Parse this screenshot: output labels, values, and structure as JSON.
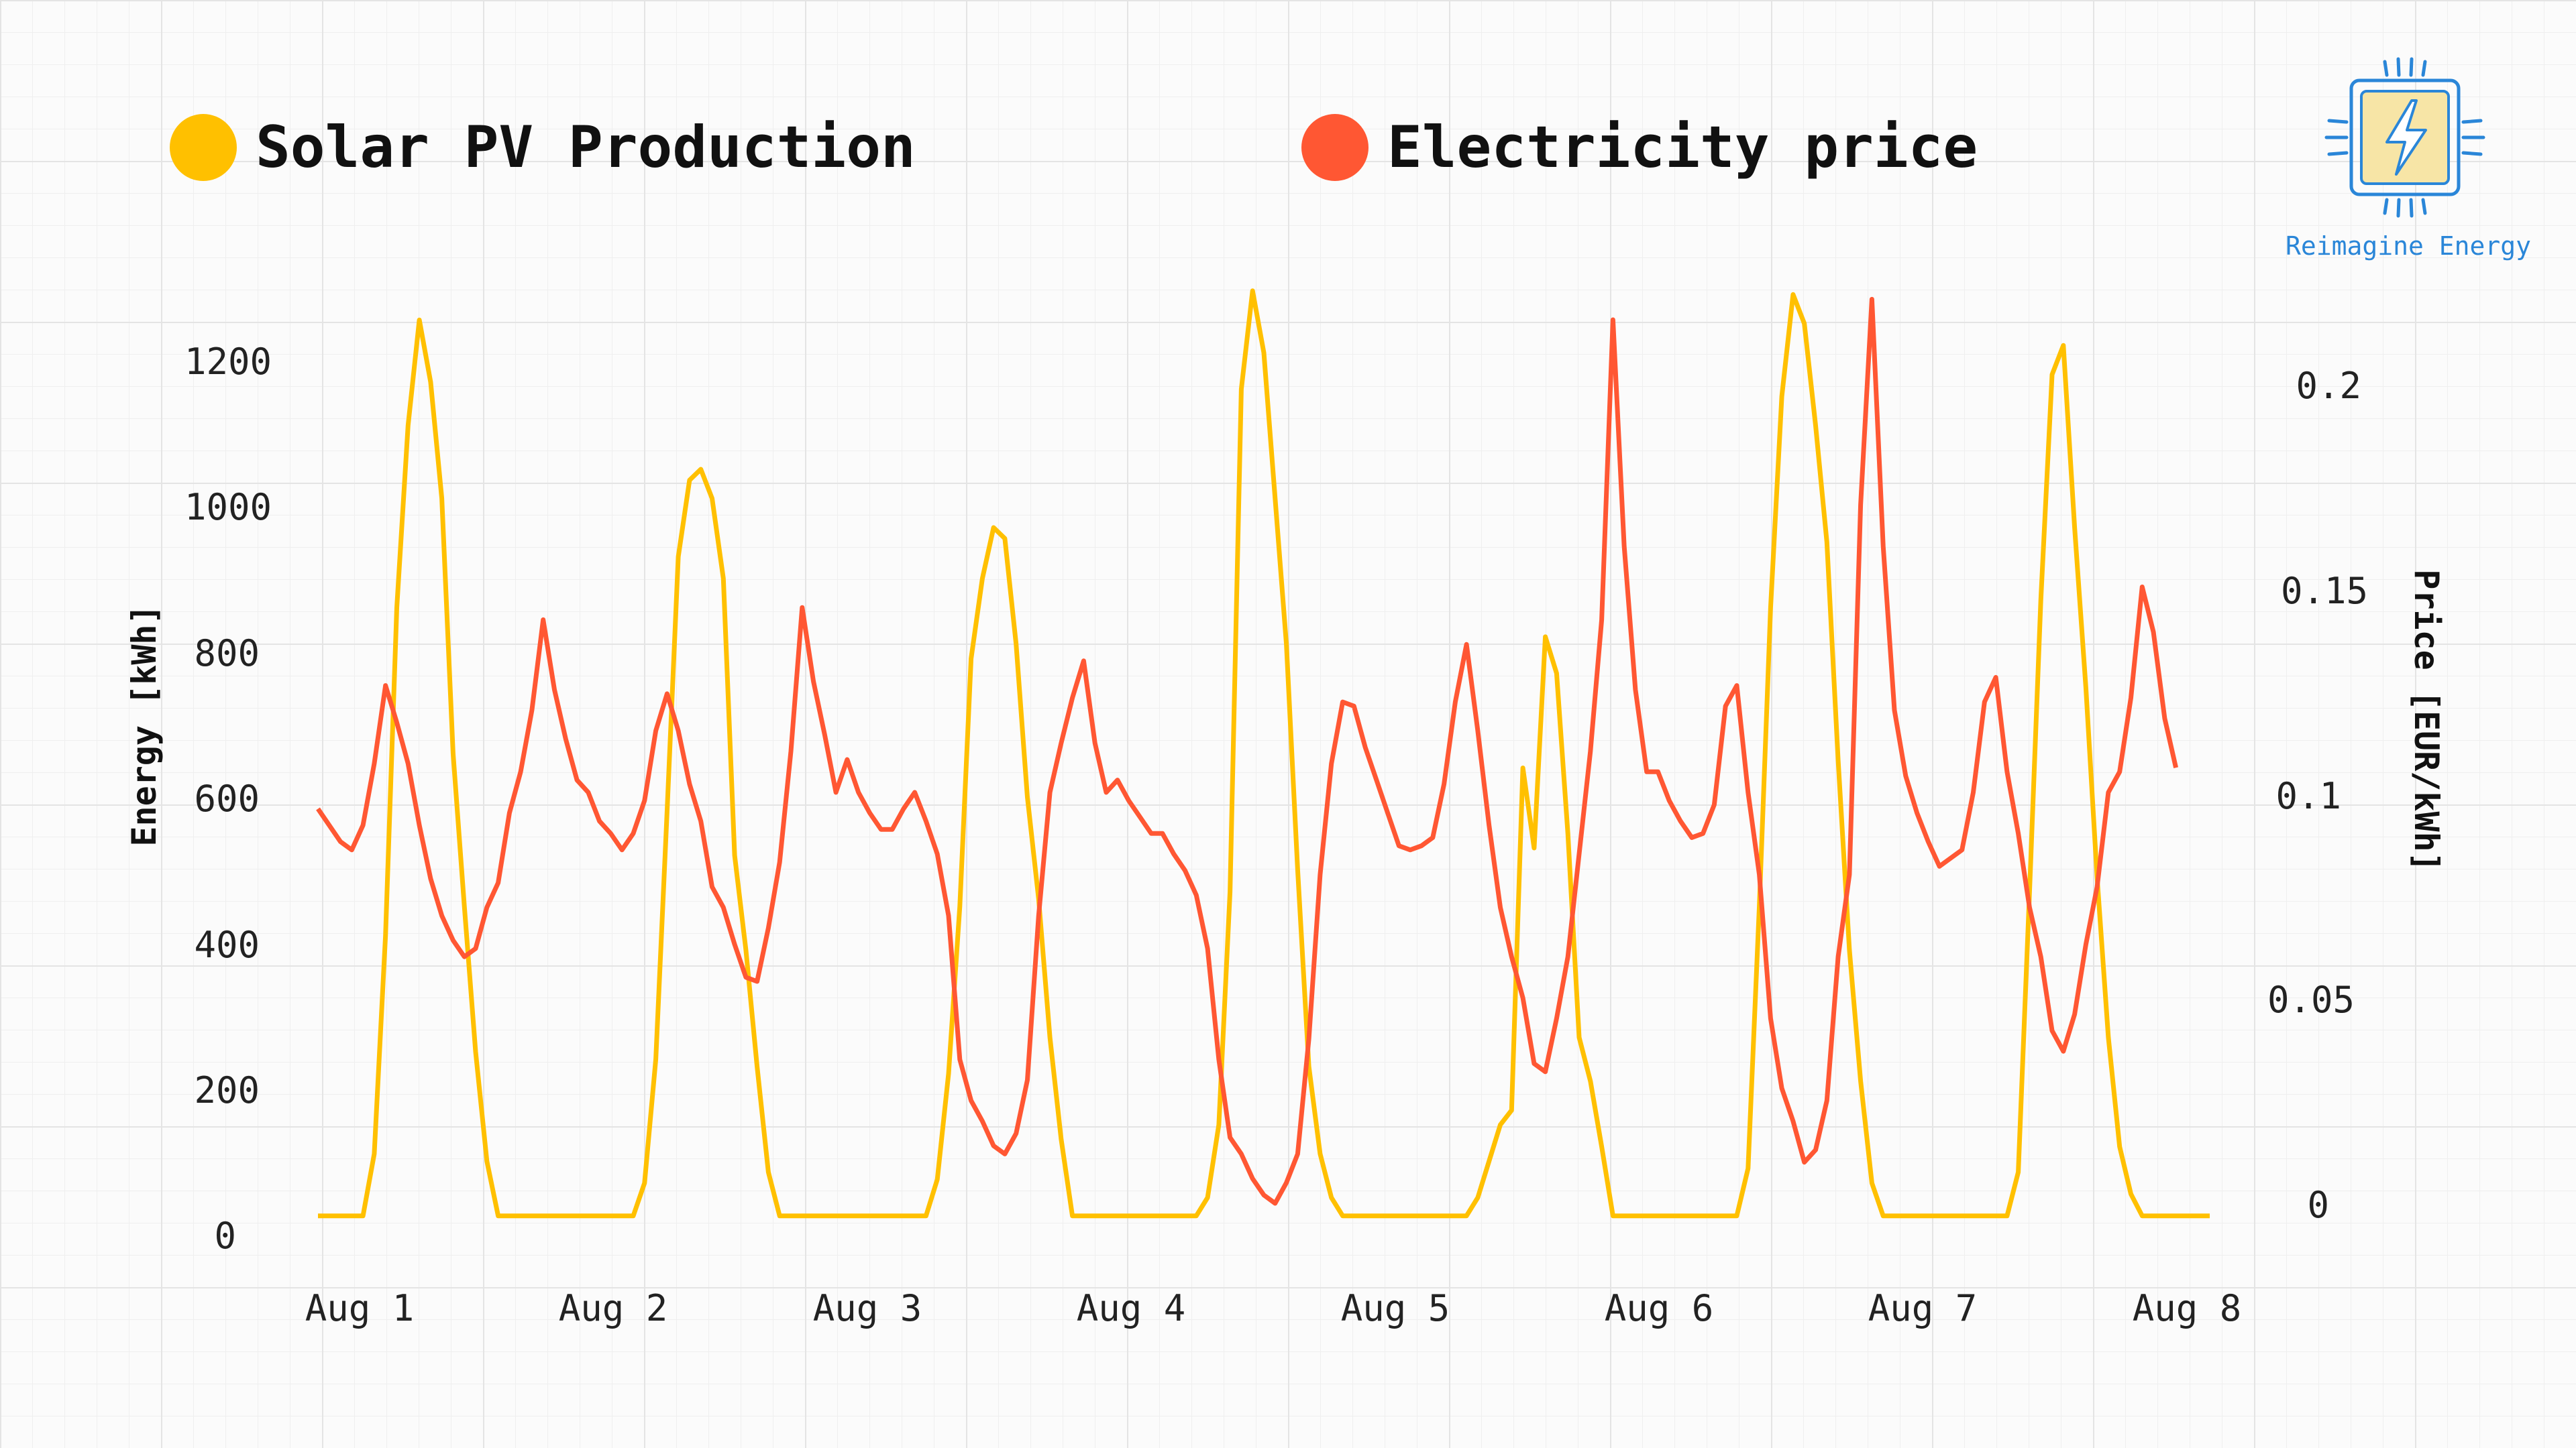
{
  "legend": {
    "solar_label": "Solar PV Production",
    "price_label": "Electricity price",
    "solar_color": "#FFC000",
    "price_color": "#FF5733"
  },
  "brand": {
    "text": "Reimagine Energy",
    "color": "#2A86D8",
    "icon": "bolt-chip-icon"
  },
  "chart_data": {
    "type": "line",
    "x_ticks": [
      "Aug 1",
      "Aug 2",
      "Aug 3",
      "Aug 4",
      "Aug 5",
      "Aug 6",
      "Aug 7",
      "Aug 8"
    ],
    "xlim": [
      "Aug 1 00:00",
      "Aug 8 00:00"
    ],
    "left_axis": {
      "label": "Energy [kWh]",
      "ticks": [
        "0",
        "200",
        "400",
        "600",
        "800",
        "1000",
        "1200"
      ],
      "ylim": [
        0,
        1300
      ]
    },
    "right_axis": {
      "label": "Price [EUR/kWh]",
      "ticks": [
        "0",
        "0.05",
        "0.1",
        "0.15",
        "0.2"
      ],
      "ylim": [
        0,
        0.22
      ]
    },
    "grid": true,
    "legend_position": "top",
    "series": [
      {
        "name": "Solar PV Production",
        "axis": "left",
        "color": "#FFC000",
        "points": [
          [
            "Aug 1 00:00",
            15
          ],
          [
            "Aug 1 04:00",
            15
          ],
          [
            "Aug 1 05:00",
            100
          ],
          [
            "Aug 1 06:00",
            400
          ],
          [
            "Aug 1 07:00",
            850
          ],
          [
            "Aug 1 08:00",
            1100
          ],
          [
            "Aug 1 09:00",
            1245
          ],
          [
            "Aug 1 10:00",
            1160
          ],
          [
            "Aug 1 11:00",
            1000
          ],
          [
            "Aug 1 12:00",
            650
          ],
          [
            "Aug 1 13:00",
            440
          ],
          [
            "Aug 1 14:00",
            240
          ],
          [
            "Aug 1 15:00",
            90
          ],
          [
            "Aug 1 16:00",
            15
          ],
          [
            "Aug 2 04:00",
            15
          ],
          [
            "Aug 2 05:00",
            60
          ],
          [
            "Aug 2 06:00",
            230
          ],
          [
            "Aug 2 07:00",
            570
          ],
          [
            "Aug 2 08:00",
            920
          ],
          [
            "Aug 2 09:00",
            1025
          ],
          [
            "Aug 2 10:00",
            1040
          ],
          [
            "Aug 2 11:00",
            1000
          ],
          [
            "Aug 2 12:00",
            890
          ],
          [
            "Aug 2 13:00",
            510
          ],
          [
            "Aug 2 14:00",
            380
          ],
          [
            "Aug 2 15:00",
            220
          ],
          [
            "Aug 2 16:00",
            75
          ],
          [
            "Aug 2 17:00",
            15
          ],
          [
            "Aug 3 06:00",
            15
          ],
          [
            "Aug 3 07:00",
            65
          ],
          [
            "Aug 3 08:00",
            210
          ],
          [
            "Aug 3 09:00",
            440
          ],
          [
            "Aug 3 10:00",
            780
          ],
          [
            "Aug 3 11:00",
            890
          ],
          [
            "Aug 3 12:00",
            960
          ],
          [
            "Aug 3 13:00",
            945
          ],
          [
            "Aug 3 14:00",
            800
          ],
          [
            "Aug 3 15:00",
            590
          ],
          [
            "Aug 3 16:00",
            450
          ],
          [
            "Aug 3 17:00",
            260
          ],
          [
            "Aug 3 18:00",
            120
          ],
          [
            "Aug 3 19:00",
            15
          ],
          [
            "Aug 4 06:00",
            15
          ],
          [
            "Aug 4 07:00",
            40
          ],
          [
            "Aug 4 08:00",
            140
          ],
          [
            "Aug 4 09:00",
            460
          ],
          [
            "Aug 4 10:00",
            1150
          ],
          [
            "Aug 4 11:00",
            1285
          ],
          [
            "Aug 4 12:00",
            1200
          ],
          [
            "Aug 4 13:00",
            1000
          ],
          [
            "Aug 4 14:00",
            800
          ],
          [
            "Aug 4 15:00",
            490
          ],
          [
            "Aug 4 16:00",
            220
          ],
          [
            "Aug 4 17:00",
            100
          ],
          [
            "Aug 4 18:00",
            40
          ],
          [
            "Aug 4 19:00",
            15
          ],
          [
            "Aug 5 06:00",
            15
          ],
          [
            "Aug 5 07:00",
            40
          ],
          [
            "Aug 5 08:00",
            90
          ],
          [
            "Aug 5 09:00",
            140
          ],
          [
            "Aug 5 10:00",
            160
          ],
          [
            "Aug 5 11:00",
            630
          ],
          [
            "Aug 5 12:00",
            520
          ],
          [
            "Aug 5 13:00",
            810
          ],
          [
            "Aug 5 14:00",
            760
          ],
          [
            "Aug 5 15:00",
            540
          ],
          [
            "Aug 5 16:00",
            260
          ],
          [
            "Aug 5 17:00",
            200
          ],
          [
            "Aug 5 18:00",
            110
          ],
          [
            "Aug 5 19:00",
            15
          ],
          [
            "Aug 6 06:00",
            15
          ],
          [
            "Aug 6 07:00",
            80
          ],
          [
            "Aug 6 08:00",
            440
          ],
          [
            "Aug 6 09:00",
            850
          ],
          [
            "Aug 6 10:00",
            1140
          ],
          [
            "Aug 6 11:00",
            1280
          ],
          [
            "Aug 6 12:00",
            1240
          ],
          [
            "Aug 6 13:00",
            1100
          ],
          [
            "Aug 6 14:00",
            940
          ],
          [
            "Aug 6 15:00",
            640
          ],
          [
            "Aug 6 16:00",
            380
          ],
          [
            "Aug 6 17:00",
            200
          ],
          [
            "Aug 6 18:00",
            60
          ],
          [
            "Aug 6 19:00",
            15
          ],
          [
            "Aug 7 06:00",
            15
          ],
          [
            "Aug 7 07:00",
            75
          ],
          [
            "Aug 7 08:00",
            460
          ],
          [
            "Aug 7 09:00",
            860
          ],
          [
            "Aug 7 10:00",
            1170
          ],
          [
            "Aug 7 11:00",
            1210
          ],
          [
            "Aug 7 12:00",
            960
          ],
          [
            "Aug 7 13:00",
            740
          ],
          [
            "Aug 7 14:00",
            480
          ],
          [
            "Aug 7 15:00",
            260
          ],
          [
            "Aug 7 16:00",
            110
          ],
          [
            "Aug 7 17:00",
            45
          ],
          [
            "Aug 7 18:00",
            15
          ],
          [
            "Aug 8 00:00",
            15
          ]
        ]
      },
      {
        "name": "Electricity price",
        "axis": "right",
        "color": "#FF5733",
        "points": [
          [
            "Aug 1 00:00",
            0.096
          ],
          [
            "Aug 1 02:00",
            0.088
          ],
          [
            "Aug 1 03:00",
            0.086
          ],
          [
            "Aug 1 04:00",
            0.092
          ],
          [
            "Aug 1 05:00",
            0.107
          ],
          [
            "Aug 1 06:00",
            0.126
          ],
          [
            "Aug 1 07:00",
            0.117
          ],
          [
            "Aug 1 08:00",
            0.107
          ],
          [
            "Aug 1 09:00",
            0.092
          ],
          [
            "Aug 1 10:00",
            0.079
          ],
          [
            "Aug 1 11:00",
            0.07
          ],
          [
            "Aug 1 12:00",
            0.064
          ],
          [
            "Aug 1 13:00",
            0.06
          ],
          [
            "Aug 1 14:00",
            0.062
          ],
          [
            "Aug 1 15:00",
            0.072
          ],
          [
            "Aug 1 16:00",
            0.078
          ],
          [
            "Aug 1 17:00",
            0.095
          ],
          [
            "Aug 1 18:00",
            0.105
          ],
          [
            "Aug 1 19:00",
            0.12
          ],
          [
            "Aug 1 20:00",
            0.142
          ],
          [
            "Aug 1 21:00",
            0.125
          ],
          [
            "Aug 1 22:00",
            0.113
          ],
          [
            "Aug 1 23:00",
            0.103
          ],
          [
            "Aug 2 00:00",
            0.1
          ],
          [
            "Aug 2 01:00",
            0.093
          ],
          [
            "Aug 2 02:00",
            0.09
          ],
          [
            "Aug 2 03:00",
            0.086
          ],
          [
            "Aug 2 04:00",
            0.09
          ],
          [
            "Aug 2 05:00",
            0.098
          ],
          [
            "Aug 2 06:00",
            0.115
          ],
          [
            "Aug 2 07:00",
            0.124
          ],
          [
            "Aug 2 08:00",
            0.115
          ],
          [
            "Aug 2 09:00",
            0.102
          ],
          [
            "Aug 2 10:00",
            0.093
          ],
          [
            "Aug 2 11:00",
            0.077
          ],
          [
            "Aug 2 12:00",
            0.072
          ],
          [
            "Aug 2 13:00",
            0.063
          ],
          [
            "Aug 2 14:00",
            0.055
          ],
          [
            "Aug 2 15:00",
            0.054
          ],
          [
            "Aug 2 16:00",
            0.067
          ],
          [
            "Aug 2 17:00",
            0.083
          ],
          [
            "Aug 2 18:00",
            0.11
          ],
          [
            "Aug 2 19:00",
            0.145
          ],
          [
            "Aug 2 20:00",
            0.127
          ],
          [
            "Aug 2 21:00",
            0.114
          ],
          [
            "Aug 2 22:00",
            0.1
          ],
          [
            "Aug 2 23:00",
            0.108
          ],
          [
            "Aug 3 00:00",
            0.1
          ],
          [
            "Aug 3 01:00",
            0.095
          ],
          [
            "Aug 3 02:00",
            0.091
          ],
          [
            "Aug 3 03:00",
            0.091
          ],
          [
            "Aug 3 04:00",
            0.096
          ],
          [
            "Aug 3 05:00",
            0.1
          ],
          [
            "Aug 3 06:00",
            0.093
          ],
          [
            "Aug 3 07:00",
            0.085
          ],
          [
            "Aug 3 08:00",
            0.07
          ],
          [
            "Aug 3 09:00",
            0.035
          ],
          [
            "Aug 3 10:00",
            0.025
          ],
          [
            "Aug 3 11:00",
            0.02
          ],
          [
            "Aug 3 12:00",
            0.014
          ],
          [
            "Aug 3 13:00",
            0.012
          ],
          [
            "Aug 3 14:00",
            0.017
          ],
          [
            "Aug 3 15:00",
            0.03
          ],
          [
            "Aug 3 16:00",
            0.07
          ],
          [
            "Aug 3 17:00",
            0.1
          ],
          [
            "Aug 3 18:00",
            0.112
          ],
          [
            "Aug 3 19:00",
            0.123
          ],
          [
            "Aug 3 20:00",
            0.132
          ],
          [
            "Aug 3 21:00",
            0.112
          ],
          [
            "Aug 3 22:00",
            0.1
          ],
          [
            "Aug 3 23:00",
            0.103
          ],
          [
            "Aug 4 00:00",
            0.098
          ],
          [
            "Aug 4 01:00",
            0.094
          ],
          [
            "Aug 4 02:00",
            0.09
          ],
          [
            "Aug 4 03:00",
            0.09
          ],
          [
            "Aug 4 04:00",
            0.085
          ],
          [
            "Aug 4 05:00",
            0.081
          ],
          [
            "Aug 4 06:00",
            0.075
          ],
          [
            "Aug 4 07:00",
            0.062
          ],
          [
            "Aug 4 08:00",
            0.035
          ],
          [
            "Aug 4 09:00",
            0.016
          ],
          [
            "Aug 4 10:00",
            0.012
          ],
          [
            "Aug 4 11:00",
            0.006
          ],
          [
            "Aug 4 12:00",
            0.002
          ],
          [
            "Aug 4 13:00",
            0.0
          ],
          [
            "Aug 4 14:00",
            0.005
          ],
          [
            "Aug 4 15:00",
            0.012
          ],
          [
            "Aug 4 16:00",
            0.04
          ],
          [
            "Aug 4 17:00",
            0.08
          ],
          [
            "Aug 4 18:00",
            0.107
          ],
          [
            "Aug 4 19:00",
            0.122
          ],
          [
            "Aug 4 20:00",
            0.121
          ],
          [
            "Aug 4 21:00",
            0.111
          ],
          [
            "Aug 4 22:00",
            0.103
          ],
          [
            "Aug 4 23:00",
            0.095
          ],
          [
            "Aug 5 00:00",
            0.087
          ],
          [
            "Aug 5 01:00",
            0.086
          ],
          [
            "Aug 5 02:00",
            0.087
          ],
          [
            "Aug 5 03:00",
            0.089
          ],
          [
            "Aug 5 04:00",
            0.102
          ],
          [
            "Aug 5 05:00",
            0.122
          ],
          [
            "Aug 5 06:00",
            0.136
          ],
          [
            "Aug 5 07:00",
            0.115
          ],
          [
            "Aug 5 08:00",
            0.092
          ],
          [
            "Aug 5 09:00",
            0.072
          ],
          [
            "Aug 5 10:00",
            0.06
          ],
          [
            "Aug 5 11:00",
            0.05
          ],
          [
            "Aug 5 12:00",
            0.034
          ],
          [
            "Aug 5 13:00",
            0.032
          ],
          [
            "Aug 5 14:00",
            0.045
          ],
          [
            "Aug 5 15:00",
            0.06
          ],
          [
            "Aug 5 16:00",
            0.085
          ],
          [
            "Aug 5 17:00",
            0.11
          ],
          [
            "Aug 5 18:00",
            0.142
          ],
          [
            "Aug 5 19:00",
            0.215
          ],
          [
            "Aug 5 20:00",
            0.16
          ],
          [
            "Aug 5 21:00",
            0.125
          ],
          [
            "Aug 5 22:00",
            0.105
          ],
          [
            "Aug 5 23:00",
            0.105
          ],
          [
            "Aug 6 00:00",
            0.098
          ],
          [
            "Aug 6 01:00",
            0.093
          ],
          [
            "Aug 6 02:00",
            0.089
          ],
          [
            "Aug 6 03:00",
            0.09
          ],
          [
            "Aug 6 04:00",
            0.097
          ],
          [
            "Aug 6 05:00",
            0.121
          ],
          [
            "Aug 6 06:00",
            0.126
          ],
          [
            "Aug 6 07:00",
            0.1
          ],
          [
            "Aug 6 08:00",
            0.08
          ],
          [
            "Aug 6 09:00",
            0.045
          ],
          [
            "Aug 6 10:00",
            0.028
          ],
          [
            "Aug 6 11:00",
            0.02
          ],
          [
            "Aug 6 12:00",
            0.01
          ],
          [
            "Aug 6 13:00",
            0.013
          ],
          [
            "Aug 6 14:00",
            0.025
          ],
          [
            "Aug 6 15:00",
            0.06
          ],
          [
            "Aug 6 16:00",
            0.08
          ],
          [
            "Aug 6 17:00",
            0.17
          ],
          [
            "Aug 6 18:00",
            0.22
          ],
          [
            "Aug 6 19:00",
            0.16
          ],
          [
            "Aug 6 20:00",
            0.12
          ],
          [
            "Aug 6 21:00",
            0.104
          ],
          [
            "Aug 6 22:00",
            0.095
          ],
          [
            "Aug 6 23:00",
            0.088
          ],
          [
            "Aug 7 00:00",
            0.082
          ],
          [
            "Aug 7 01:00",
            0.084
          ],
          [
            "Aug 7 02:00",
            0.086
          ],
          [
            "Aug 7 03:00",
            0.1
          ],
          [
            "Aug 7 04:00",
            0.122
          ],
          [
            "Aug 7 05:00",
            0.128
          ],
          [
            "Aug 7 06:00",
            0.105
          ],
          [
            "Aug 7 07:00",
            0.09
          ],
          [
            "Aug 7 08:00",
            0.072
          ],
          [
            "Aug 7 09:00",
            0.06
          ],
          [
            "Aug 7 10:00",
            0.042
          ],
          [
            "Aug 7 11:00",
            0.037
          ],
          [
            "Aug 7 12:00",
            0.046
          ],
          [
            "Aug 7 13:00",
            0.063
          ],
          [
            "Aug 7 14:00",
            0.077
          ],
          [
            "Aug 7 15:00",
            0.1
          ],
          [
            "Aug 7 16:00",
            0.105
          ],
          [
            "Aug 7 17:00",
            0.123
          ],
          [
            "Aug 7 18:00",
            0.15
          ],
          [
            "Aug 7 19:00",
            0.139
          ],
          [
            "Aug 7 20:00",
            0.118
          ],
          [
            "Aug 7 21:00",
            0.106
          ]
        ]
      }
    ]
  }
}
